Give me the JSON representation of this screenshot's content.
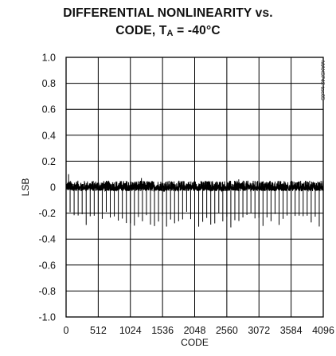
{
  "chart_data": {
    "type": "line",
    "title_line1": "DIFFERENTIAL NONLINEARITY vs.",
    "title_line2_prefix": "CODE, T",
    "title_line2_sub": "A",
    "title_line2_suffix": " = -40°C",
    "xlabel": "CODE",
    "ylabel": "LSB",
    "side_note": "MAX5742 toc05",
    "xlim": [
      0,
      4096
    ],
    "ylim": [
      -1.0,
      1.0
    ],
    "x_ticks": [
      "0",
      "512",
      "1024",
      "1536",
      "2048",
      "2560",
      "3072",
      "3584",
      "4096"
    ],
    "y_ticks": [
      "1.0",
      "0.8",
      "0.6",
      "0.4",
      "0.2",
      "0",
      "-0.2",
      "-0.4",
      "-0.6",
      "-0.8",
      "-1.0"
    ],
    "grid": true,
    "series": [
      {
        "noise_band": [
          -0.03,
          0.05
        ],
        "spike_interval_codes": 64,
        "spike_min": -0.35,
        "spike_typical": -0.25,
        "spike_max": 0.1,
        "color": "#000000"
      }
    ]
  }
}
